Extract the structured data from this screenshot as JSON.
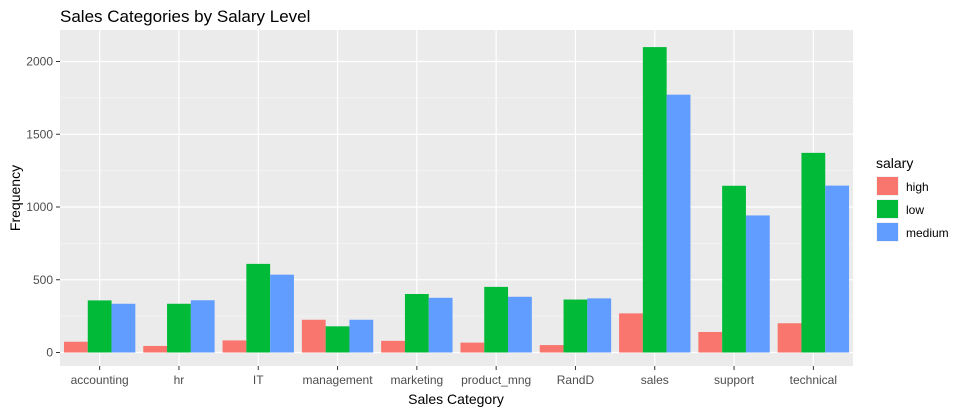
{
  "chart_data": {
    "type": "bar",
    "title": "Sales Categories by Salary Level",
    "xlabel": "Sales Category",
    "ylabel": "Frequency",
    "ylim": [
      0,
      2200
    ],
    "yticks": [
      0,
      500,
      1000,
      1500,
      2000
    ],
    "grid": true,
    "legend": {
      "title": "salary",
      "position": "right"
    },
    "categories": [
      "accounting",
      "hr",
      "IT",
      "management",
      "marketing",
      "product_mng",
      "RandD",
      "sales",
      "support",
      "technical"
    ],
    "series": [
      {
        "name": "high",
        "color": "#F8766D",
        "values": [
          74,
          45,
          83,
          225,
          80,
          68,
          51,
          269,
          141,
          201
        ]
      },
      {
        "name": "low",
        "color": "#00BA38",
        "values": [
          358,
          335,
          609,
          180,
          402,
          451,
          364,
          2099,
          1146,
          1372
        ]
      },
      {
        "name": "medium",
        "color": "#619CFF",
        "values": [
          335,
          359,
          535,
          225,
          376,
          383,
          372,
          1772,
          942,
          1147
        ]
      }
    ]
  }
}
